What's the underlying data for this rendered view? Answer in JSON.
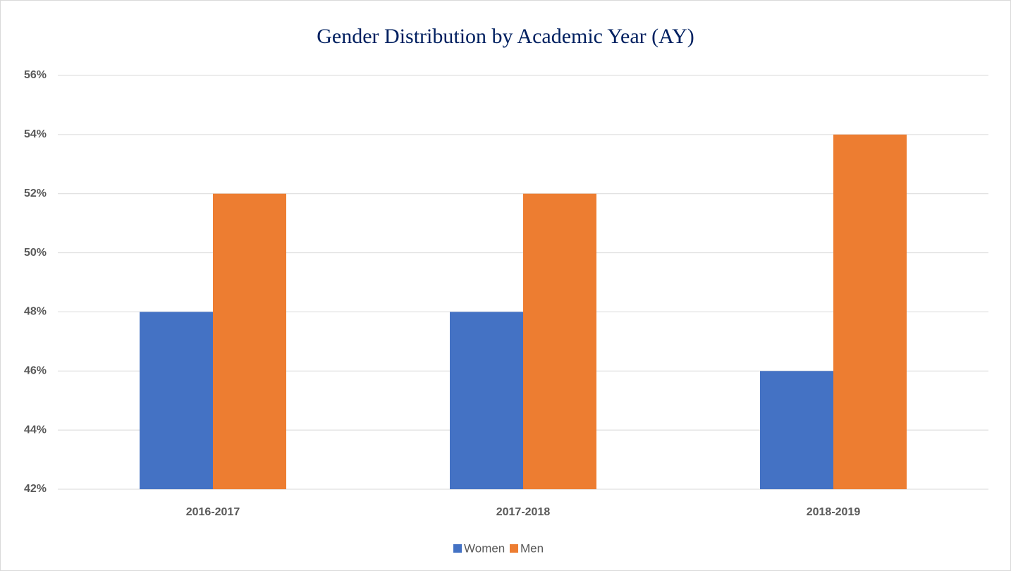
{
  "chart_data": {
    "type": "bar",
    "title": "Gender Distribution by Academic Year (AY)",
    "categories": [
      "2016-2017",
      "2017-2018",
      "2018-2019"
    ],
    "series": [
      {
        "name": "Women",
        "color": "#4472c4",
        "values": [
          48,
          48,
          46
        ]
      },
      {
        "name": "Men",
        "color": "#ed7d31",
        "values": [
          52,
          52,
          54
        ]
      }
    ],
    "ylim": [
      42,
      56
    ],
    "yticks": [
      {
        "value": 42,
        "label": "42%"
      },
      {
        "value": 44,
        "label": "44%"
      },
      {
        "value": 46,
        "label": "46%"
      },
      {
        "value": 48,
        "label": "48%"
      },
      {
        "value": 50,
        "label": "50%"
      },
      {
        "value": 52,
        "label": "52%"
      },
      {
        "value": 54,
        "label": "54%"
      },
      {
        "value": 56,
        "label": "56%"
      }
    ],
    "grid": true,
    "legend": "bottom"
  }
}
